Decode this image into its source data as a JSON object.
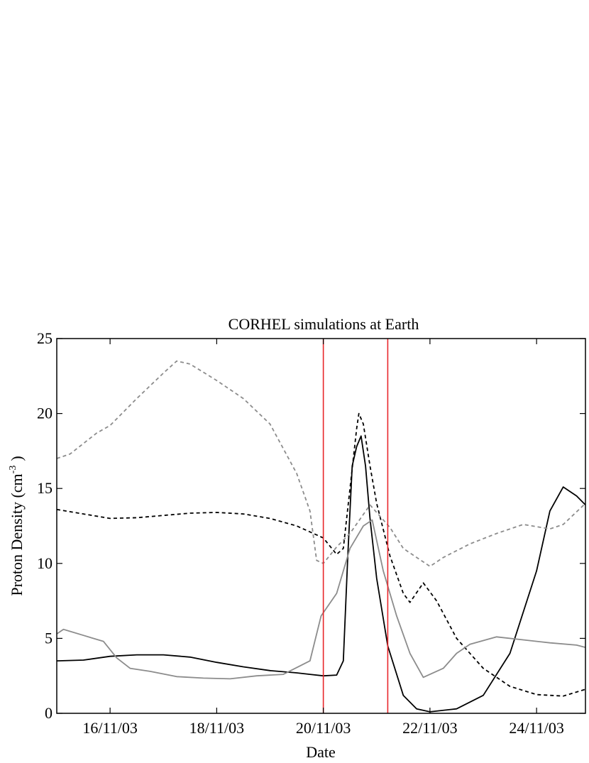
{
  "chart_data": {
    "type": "line",
    "title": "CORHEL simulations at Earth",
    "xlabel": "Date",
    "ylabel_main": "Proton Density (cm",
    "ylabel_sup": "-3",
    "ylabel_close": ")",
    "xlim": [
      "2003-11-15T00:00",
      "2003-11-24T22:00"
    ],
    "ylim": [
      0,
      25
    ],
    "yticks": [
      0,
      5,
      10,
      15,
      20,
      25
    ],
    "xticks": [
      {
        "date": "2003-11-16",
        "label": "16/11/03"
      },
      {
        "date": "2003-11-18",
        "label": "18/11/03"
      },
      {
        "date": "2003-11-20",
        "label": "20/11/03"
      },
      {
        "date": "2003-11-22",
        "label": "22/11/03"
      },
      {
        "date": "2003-11-24",
        "label": "24/11/03"
      }
    ],
    "vlines": [
      {
        "date": "2003-11-20T00:00",
        "color": "#e8262b"
      },
      {
        "date": "2003-11-21T05:00",
        "color": "#e8262b"
      }
    ],
    "series": [
      {
        "style": "solid",
        "color": "#000000",
        "points": [
          [
            "2003-11-15T00:00",
            3.5
          ],
          [
            "2003-11-15T12:00",
            3.55
          ],
          [
            "2003-11-16T00:00",
            3.8
          ],
          [
            "2003-11-16T12:00",
            3.9
          ],
          [
            "2003-11-17T00:00",
            3.9
          ],
          [
            "2003-11-17T12:00",
            3.75
          ],
          [
            "2003-11-18T00:00",
            3.4
          ],
          [
            "2003-11-18T12:00",
            3.1
          ],
          [
            "2003-11-19T00:00",
            2.85
          ],
          [
            "2003-11-19T12:00",
            2.7
          ],
          [
            "2003-11-19T18:00",
            2.6
          ],
          [
            "2003-11-20T00:00",
            2.5
          ],
          [
            "2003-11-20T06:00",
            2.55
          ],
          [
            "2003-11-20T09:00",
            3.5
          ],
          [
            "2003-11-20T11:00",
            10.5
          ],
          [
            "2003-11-20T13:00",
            16.5
          ],
          [
            "2003-11-20T15:00",
            17.8
          ],
          [
            "2003-11-20T17:00",
            18.5
          ],
          [
            "2003-11-20T19:00",
            16.5
          ],
          [
            "2003-11-20T21:00",
            13.0
          ],
          [
            "2003-11-21T00:00",
            9.0
          ],
          [
            "2003-11-21T05:00",
            4.5
          ],
          [
            "2003-11-21T12:00",
            1.2
          ],
          [
            "2003-11-21T18:00",
            0.3
          ],
          [
            "2003-11-22T00:00",
            0.1
          ],
          [
            "2003-11-22T12:00",
            0.3
          ],
          [
            "2003-11-23T00:00",
            1.2
          ],
          [
            "2003-11-23T12:00",
            4.0
          ],
          [
            "2003-11-24T00:00",
            9.5
          ],
          [
            "2003-11-24T06:00",
            13.5
          ],
          [
            "2003-11-24T12:00",
            15.1
          ],
          [
            "2003-11-24T18:00",
            14.5
          ],
          [
            "2003-11-24T22:00",
            13.9
          ]
        ]
      },
      {
        "style": "dashed",
        "color": "#000000",
        "points": [
          [
            "2003-11-15T00:00",
            13.6
          ],
          [
            "2003-11-15T12:00",
            13.3
          ],
          [
            "2003-11-16T00:00",
            13.0
          ],
          [
            "2003-11-16T12:00",
            13.05
          ],
          [
            "2003-11-17T00:00",
            13.2
          ],
          [
            "2003-11-17T12:00",
            13.35
          ],
          [
            "2003-11-18T00:00",
            13.4
          ],
          [
            "2003-11-18T12:00",
            13.3
          ],
          [
            "2003-11-19T00:00",
            13.0
          ],
          [
            "2003-11-19T12:00",
            12.5
          ],
          [
            "2003-11-20T00:00",
            11.7
          ],
          [
            "2003-11-20T06:00",
            10.6
          ],
          [
            "2003-11-20T09:00",
            11.0
          ],
          [
            "2003-11-20T12:00",
            15.0
          ],
          [
            "2003-11-20T15:00",
            19.0
          ],
          [
            "2003-11-20T16:00",
            20.0
          ],
          [
            "2003-11-20T18:00",
            19.3
          ],
          [
            "2003-11-20T21:00",
            16.5
          ],
          [
            "2003-11-21T00:00",
            14.0
          ],
          [
            "2003-11-21T06:00",
            10.5
          ],
          [
            "2003-11-21T12:00",
            8.0
          ],
          [
            "2003-11-21T15:00",
            7.4
          ],
          [
            "2003-11-21T21:00",
            8.7
          ],
          [
            "2003-11-22T03:00",
            7.5
          ],
          [
            "2003-11-22T12:00",
            5.0
          ],
          [
            "2003-11-23T00:00",
            3.0
          ],
          [
            "2003-11-23T12:00",
            1.8
          ],
          [
            "2003-11-24T00:00",
            1.25
          ],
          [
            "2003-11-24T12:00",
            1.15
          ],
          [
            "2003-11-24T22:00",
            1.6
          ]
        ]
      },
      {
        "style": "solid",
        "color": "#8c8c8c",
        "points": [
          [
            "2003-11-15T00:00",
            5.3
          ],
          [
            "2003-11-15T03:00",
            5.6
          ],
          [
            "2003-11-15T12:00",
            5.2
          ],
          [
            "2003-11-15T21:00",
            4.8
          ],
          [
            "2003-11-16T03:00",
            3.7
          ],
          [
            "2003-11-16T09:00",
            3.0
          ],
          [
            "2003-11-16T18:00",
            2.8
          ],
          [
            "2003-11-17T06:00",
            2.45
          ],
          [
            "2003-11-17T18:00",
            2.35
          ],
          [
            "2003-11-18T06:00",
            2.3
          ],
          [
            "2003-11-18T18:00",
            2.5
          ],
          [
            "2003-11-19T06:00",
            2.6
          ],
          [
            "2003-11-19T18:00",
            3.5
          ],
          [
            "2003-11-19T23:00",
            6.5
          ],
          [
            "2003-11-20T06:00",
            8.0
          ],
          [
            "2003-11-20T12:00",
            11.0
          ],
          [
            "2003-11-20T18:00",
            12.5
          ],
          [
            "2003-11-20T22:00",
            12.9
          ],
          [
            "2003-11-21T03:00",
            9.5
          ],
          [
            "2003-11-21T09:00",
            6.5
          ],
          [
            "2003-11-21T15:00",
            4.0
          ],
          [
            "2003-11-21T21:00",
            2.4
          ],
          [
            "2003-11-22T06:00",
            3.0
          ],
          [
            "2003-11-22T12:00",
            4.0
          ],
          [
            "2003-11-22T18:00",
            4.6
          ],
          [
            "2003-11-23T06:00",
            5.1
          ],
          [
            "2003-11-23T18:00",
            4.9
          ],
          [
            "2003-11-24T06:00",
            4.7
          ],
          [
            "2003-11-24T18:00",
            4.55
          ],
          [
            "2003-11-24T22:00",
            4.4
          ]
        ]
      },
      {
        "style": "dashed",
        "color": "#8c8c8c",
        "points": [
          [
            "2003-11-15T00:00",
            17.0
          ],
          [
            "2003-11-15T06:00",
            17.3
          ],
          [
            "2003-11-15T18:00",
            18.7
          ],
          [
            "2003-11-16T00:00",
            19.2
          ],
          [
            "2003-11-16T12:00",
            21.0
          ],
          [
            "2003-11-17T00:00",
            22.7
          ],
          [
            "2003-11-17T06:00",
            23.5
          ],
          [
            "2003-11-17T12:00",
            23.3
          ],
          [
            "2003-11-18T00:00",
            22.2
          ],
          [
            "2003-11-18T12:00",
            21.0
          ],
          [
            "2003-11-19T00:00",
            19.3
          ],
          [
            "2003-11-19T12:00",
            16.0
          ],
          [
            "2003-11-19T18:00",
            13.5
          ],
          [
            "2003-11-19T21:00",
            10.2
          ],
          [
            "2003-11-20T00:00",
            10.0
          ],
          [
            "2003-11-20T06:00",
            11.1
          ],
          [
            "2003-11-20T12:00",
            12.0
          ],
          [
            "2003-11-20T21:00",
            13.9
          ],
          [
            "2003-11-21T06:00",
            12.4
          ],
          [
            "2003-11-21T12:00",
            11.0
          ],
          [
            "2003-11-22T00:00",
            9.8
          ],
          [
            "2003-11-22T06:00",
            10.4
          ],
          [
            "2003-11-22T18:00",
            11.3
          ],
          [
            "2003-11-23T06:00",
            12.0
          ],
          [
            "2003-11-23T18:00",
            12.6
          ],
          [
            "2003-11-24T06:00",
            12.3
          ],
          [
            "2003-11-24T12:00",
            12.6
          ],
          [
            "2003-11-24T22:00",
            14.0
          ]
        ]
      }
    ]
  }
}
